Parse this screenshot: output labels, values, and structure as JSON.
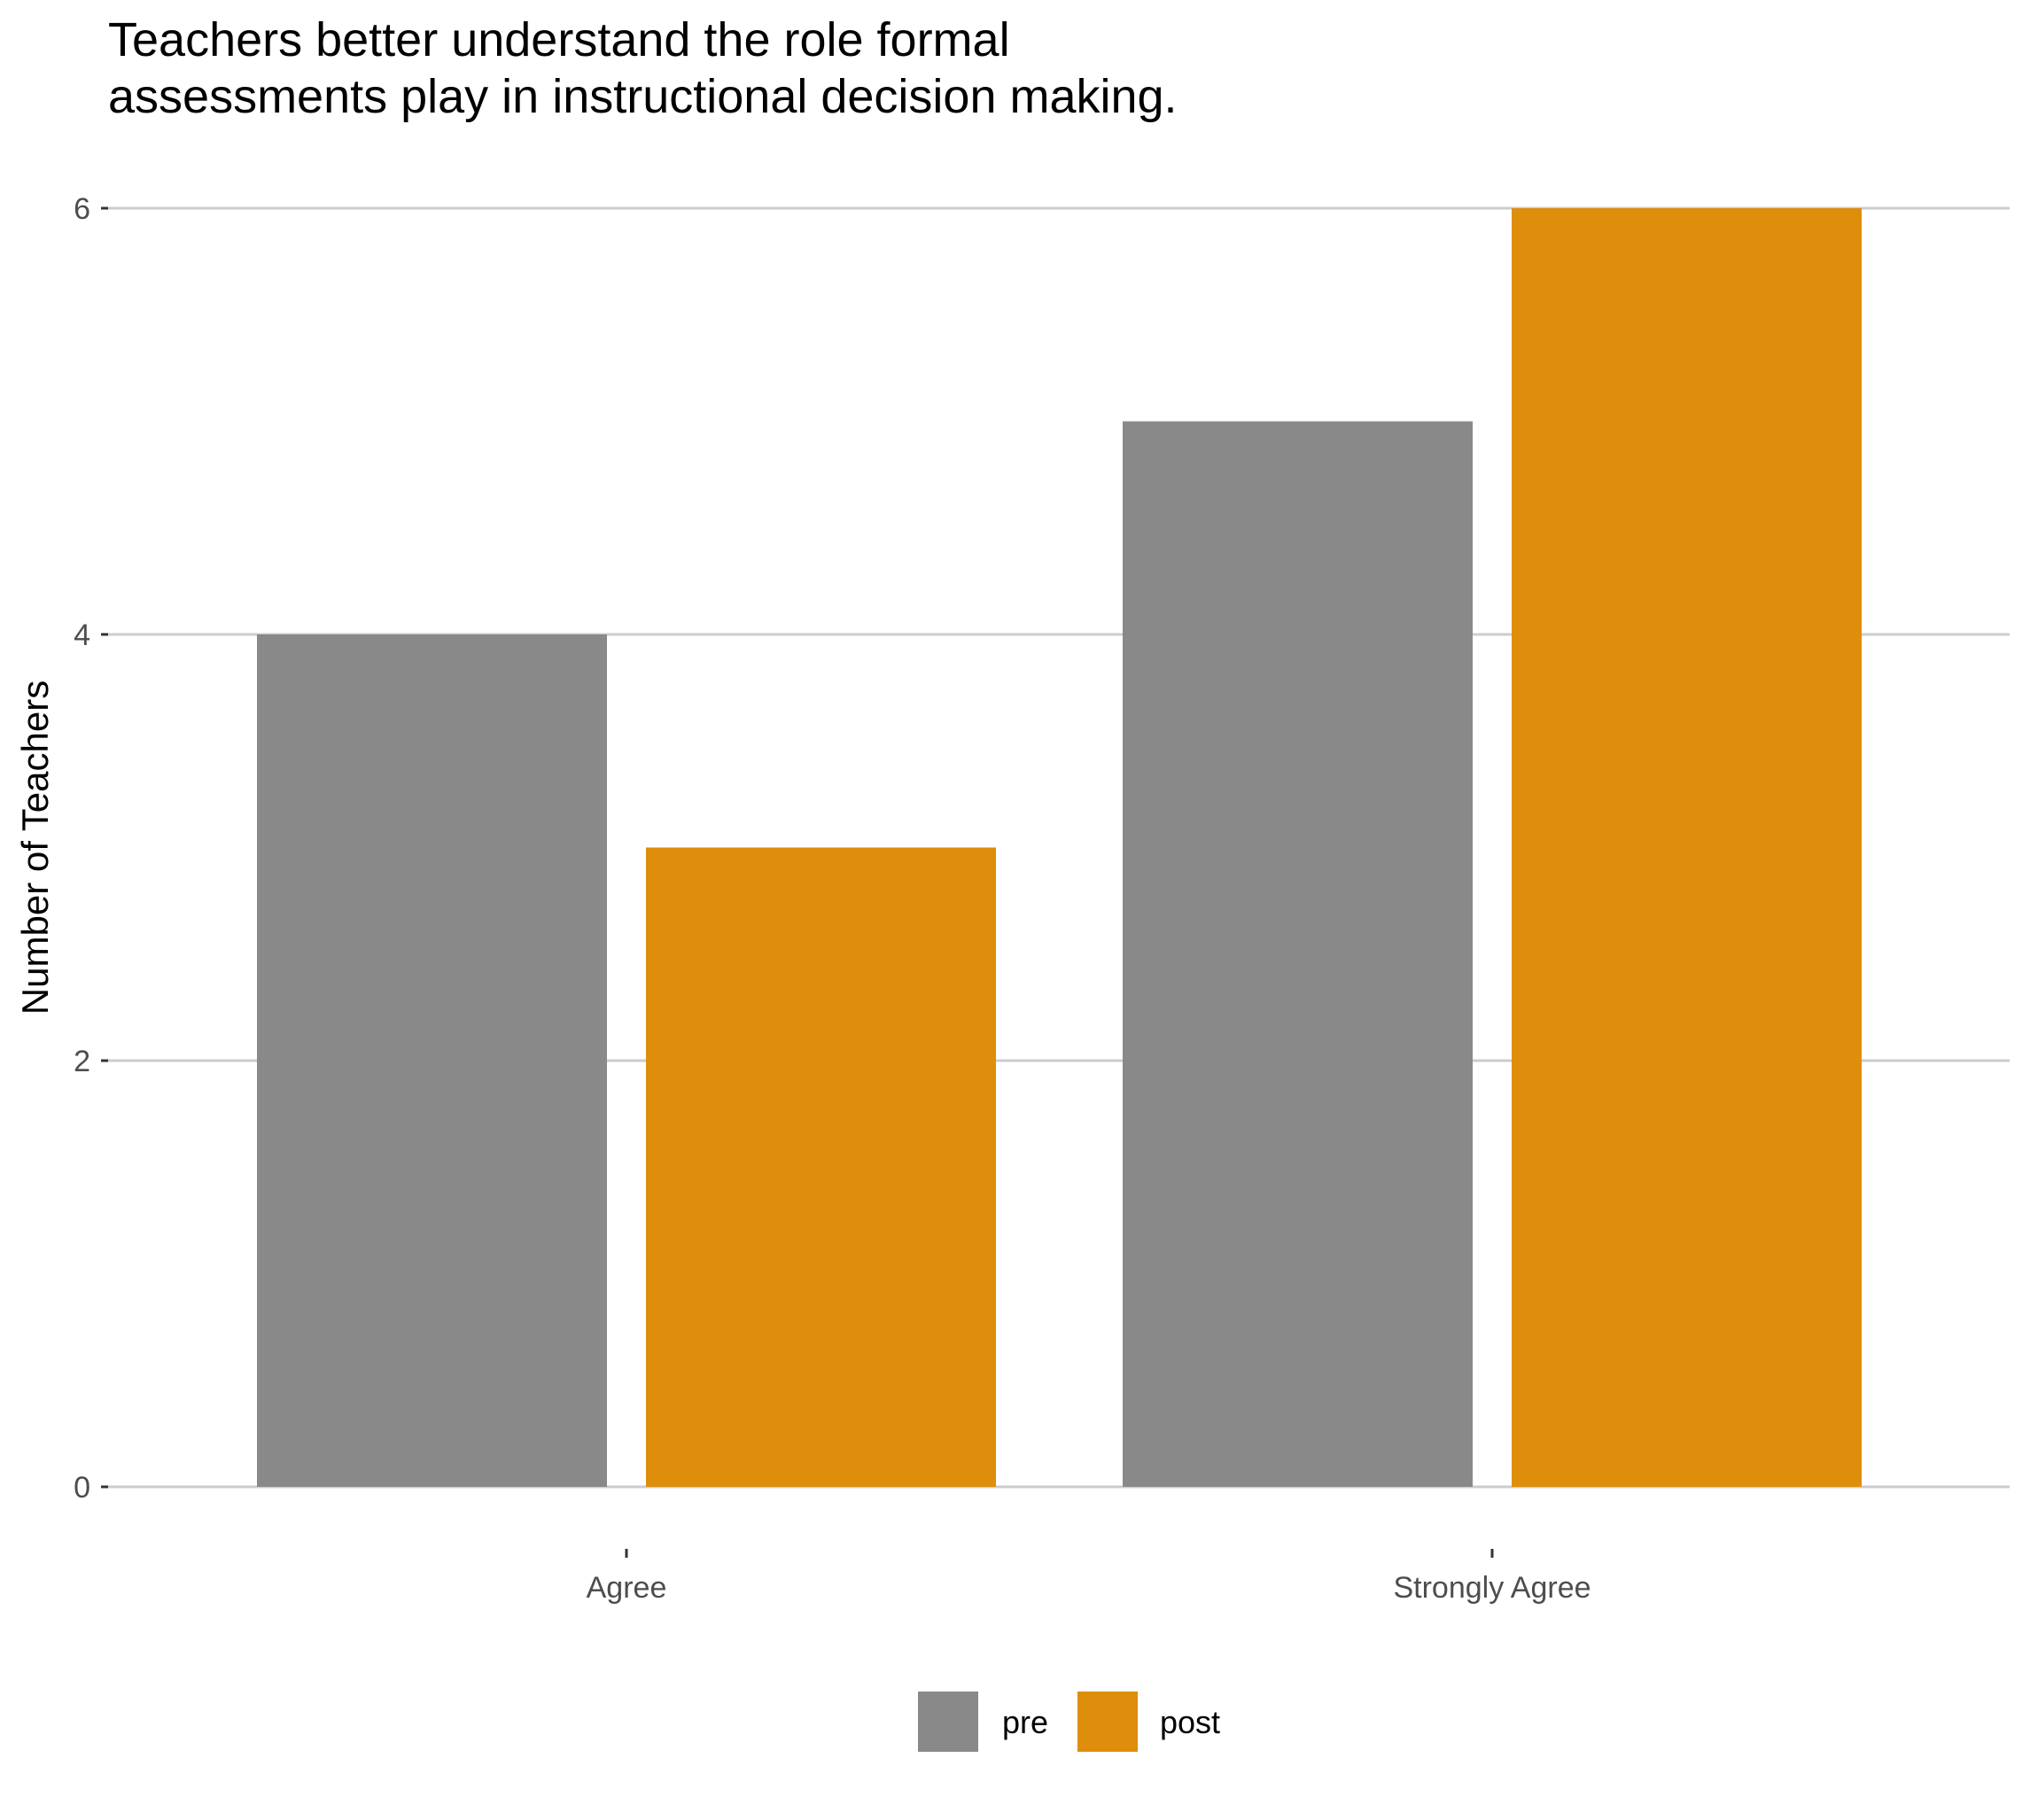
{
  "chart_data": {
    "type": "bar",
    "title_lines": [
      "Teachers better understand the role formal",
      "assessments play in instructional decision making."
    ],
    "xlabel": "",
    "ylabel": "Number of Teachers",
    "categories": [
      "Agree",
      "Strongly Agree"
    ],
    "series": [
      {
        "name": "pre",
        "values": [
          4,
          5
        ],
        "color": "#898989"
      },
      {
        "name": "post",
        "values": [
          3,
          6
        ],
        "color": "#DE8E0A"
      }
    ],
    "ylim": [
      0,
      6
    ],
    "yticks": [
      0,
      2,
      4,
      6
    ],
    "grid": "horizontal major lines",
    "legend_position": "bottom"
  }
}
